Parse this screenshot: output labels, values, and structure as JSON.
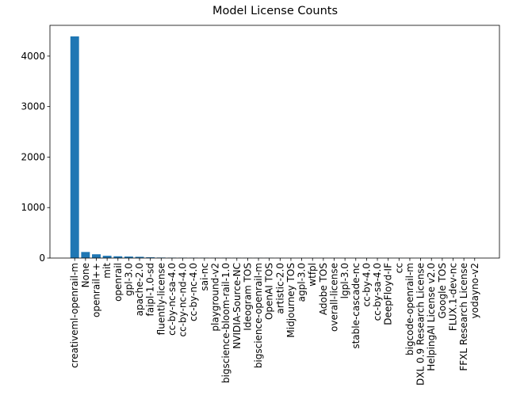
{
  "chart_data": {
    "type": "bar",
    "title": "Model License Counts",
    "categories": [
      "creativeml-openrail-m",
      "None",
      "openrail++",
      "mit",
      "openrail",
      "gpl-3.0",
      "apache-2.0",
      "faipl-1.0-sd",
      "fluently-license",
      "cc-by-nc-sa-4.0",
      "cc-by-nc-nd-4.0",
      "cc-by-nc-4.0",
      "sai-nc",
      "playground-v2",
      "bigscience-bloom-rail-1.0",
      "NVIDIA-Source-NC",
      "Ideogram TOS",
      "bigscience-openrail-m",
      "OpenAI TOS",
      "artistic-2.0",
      "Midjourney TOS",
      "agpl-3.0",
      "wtfpl",
      "Adobe TOS",
      "overall-license",
      "lgpl-3.0",
      "stable-cascade-nc",
      "cc-by-4.0",
      "cc-by-sa-4.0",
      "DeepFloyd-IF",
      "cc",
      "bigcode-openrail-m",
      "DXL 0.9 Research License",
      "HelpingAI License v2.0",
      "Google TOS",
      "FLUX.1-dev-nc",
      "FFXL Research License",
      "yodayno-v2"
    ],
    "values": [
      4390,
      120,
      75,
      45,
      35,
      30,
      25,
      15,
      10,
      8,
      7,
      6,
      5,
      4,
      4,
      3,
      3,
      3,
      3,
      2,
      2,
      2,
      2,
      2,
      2,
      1,
      1,
      1,
      1,
      1,
      1,
      1,
      1,
      1,
      1,
      1,
      1,
      1
    ],
    "color": "#1f77b4",
    "ylim": [
      0,
      4609.5
    ],
    "yticks": [
      0,
      1000,
      2000,
      3000,
      4000
    ],
    "grid": false
  }
}
